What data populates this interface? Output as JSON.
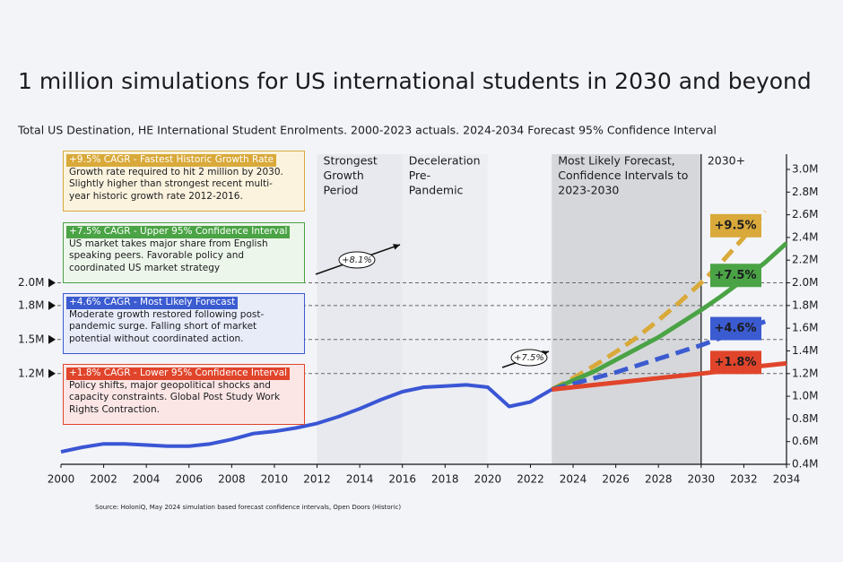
{
  "chart_data": {
    "type": "line",
    "title": "1 million simulations for US international students in 2030 and beyond",
    "subtitle": "Total US Destination, HE International Student Enrolments. 2000-2023 actuals. 2024-2034 Forecast 95% Confidence Interval",
    "source": "Source: HoloniQ, May 2024 simulation based forecast confidence intervals, Open Doors (Historic)",
    "x": [
      2000,
      2001,
      2002,
      2003,
      2004,
      2005,
      2006,
      2007,
      2008,
      2009,
      2010,
      2011,
      2012,
      2013,
      2014,
      2015,
      2016,
      2017,
      2018,
      2019,
      2020,
      2021,
      2022,
      2023,
      2024,
      2025,
      2026,
      2027,
      2028,
      2029,
      2030,
      2031,
      2032,
      2033,
      2034
    ],
    "xlim": [
      2000,
      2034
    ],
    "xticks": [
      2000,
      2002,
      2004,
      2006,
      2008,
      2010,
      2012,
      2014,
      2016,
      2018,
      2020,
      2022,
      2024,
      2026,
      2028,
      2030,
      2032,
      2034
    ],
    "ylim": [
      0.4,
      3.0
    ],
    "yticks": [
      {
        "value": 0.4,
        "label": "0.4M"
      },
      {
        "value": 0.6,
        "label": "0.6M"
      },
      {
        "value": 0.8,
        "label": "0.8M"
      },
      {
        "value": 1.0,
        "label": "1.0M"
      },
      {
        "value": 1.2,
        "label": "1.2M"
      },
      {
        "value": 1.4,
        "label": "1.4M"
      },
      {
        "value": 1.6,
        "label": "1.6M"
      },
      {
        "value": 1.8,
        "label": "1.8M"
      },
      {
        "value": 2.0,
        "label": "2.0M"
      },
      {
        "value": 2.2,
        "label": "2.2M"
      },
      {
        "value": 2.4,
        "label": "2.4M"
      },
      {
        "value": 2.6,
        "label": "2.6M"
      },
      {
        "value": 2.8,
        "label": "2.8M"
      },
      {
        "value": 3.0,
        "label": "3.0M"
      }
    ],
    "reference_lines": [
      {
        "value": 2.0,
        "label": "2.0M"
      },
      {
        "value": 1.8,
        "label": "1.8M"
      },
      {
        "value": 1.5,
        "label": "1.5M"
      },
      {
        "value": 1.2,
        "label": "1.2M"
      }
    ],
    "periods": [
      {
        "start": 2012,
        "end": 2016,
        "fill": "#e8e9ee",
        "label": [
          "Strongest",
          "Growth",
          "Period"
        ]
      },
      {
        "start": 2016,
        "end": 2020,
        "fill": "#eceef2",
        "label": [
          "Deceleration",
          "Pre-",
          "Pandemic"
        ]
      },
      {
        "start": 2023,
        "end": 2030,
        "fill": "#d6d7db",
        "label": [
          "Most Likely Forecast,",
          "Confidence Intervals to",
          "2023-2030"
        ]
      },
      {
        "start": 2030,
        "end": 2034,
        "fill": "none",
        "label": [
          "2030+"
        ]
      }
    ],
    "divider": 2030,
    "series": [
      {
        "color": "#3a56d4",
        "width": 4,
        "dashed": false,
        "values": [
          0.51,
          0.55,
          0.58,
          0.58,
          0.57,
          0.56,
          0.56,
          0.58,
          0.62,
          0.67,
          0.69,
          0.72,
          0.76,
          0.82,
          0.89,
          0.97,
          1.04,
          1.08,
          1.09,
          1.1,
          1.08,
          0.91,
          0.95,
          1.06,
          null,
          null,
          null,
          null,
          null,
          null,
          null,
          null,
          null,
          null,
          null
        ]
      },
      {
        "color": "#d9a93a",
        "width": 5,
        "dashed": true,
        "label": "+9.5%",
        "values": [
          null,
          null,
          null,
          null,
          null,
          null,
          null,
          null,
          null,
          null,
          null,
          null,
          null,
          null,
          null,
          null,
          null,
          null,
          null,
          null,
          null,
          null,
          null,
          1.06,
          1.16,
          1.27,
          1.39,
          1.52,
          1.67,
          1.83,
          2.0,
          2.19,
          2.4,
          2.63,
          null
        ]
      },
      {
        "color": "#4aa345",
        "width": 5,
        "dashed": false,
        "label": "+7.5%",
        "values": [
          null,
          null,
          null,
          null,
          null,
          null,
          null,
          null,
          null,
          null,
          null,
          null,
          null,
          null,
          null,
          null,
          null,
          null,
          null,
          null,
          null,
          null,
          null,
          1.06,
          1.14,
          1.22,
          1.32,
          1.42,
          1.52,
          1.64,
          1.76,
          1.89,
          2.03,
          2.18,
          2.35
        ]
      },
      {
        "color": "#3b5bd0",
        "width": 5,
        "dashed": true,
        "label": "+4.6%",
        "values": [
          null,
          null,
          null,
          null,
          null,
          null,
          null,
          null,
          null,
          null,
          null,
          null,
          null,
          null,
          null,
          null,
          null,
          null,
          null,
          null,
          null,
          null,
          null,
          1.06,
          1.11,
          1.16,
          1.21,
          1.27,
          1.33,
          1.39,
          1.45,
          1.52,
          1.59,
          1.66,
          null
        ]
      },
      {
        "color": "#e0452b",
        "width": 5,
        "dashed": false,
        "label": "+1.8%",
        "values": [
          null,
          null,
          null,
          null,
          null,
          null,
          null,
          null,
          null,
          null,
          null,
          null,
          null,
          null,
          null,
          null,
          null,
          null,
          null,
          null,
          null,
          null,
          null,
          1.06,
          1.08,
          1.1,
          1.12,
          1.14,
          1.16,
          1.18,
          1.2,
          1.22,
          1.25,
          1.27,
          1.29
        ]
      }
    ],
    "growth_arrows": [
      {
        "label": "+8.1%"
      },
      {
        "label": "+7.5%"
      }
    ],
    "boxes": [
      {
        "color": "#d9a93a",
        "bg": "#fbf3dd",
        "header": "+9.5% CAGR - Fastest Historic Growth Rate",
        "lines": [
          "Growth rate required to hit 2 million by 2030.",
          "Slightly higher than strongest recent multi-",
          "year historic growth rate 2012-2016."
        ]
      },
      {
        "color": "#4aa345",
        "bg": "#edf6ea",
        "header": "+7.5% CAGR - Upper 95% Confidence Interval",
        "lines": [
          "US market takes major share from English",
          "speaking peers. Favorable policy and",
          "coordinated US market strategy"
        ]
      },
      {
        "color": "#3b5bd0",
        "bg": "#e8ecf9",
        "header": "+4.6% CAGR - Most Likely Forecast",
        "lines": [
          "Moderate growth restored following post-",
          "pandemic surge. Falling short of market",
          "potential without coordinated action."
        ]
      },
      {
        "color": "#e0452b",
        "bg": "#fbe6e5",
        "header": "+1.8% CAGR - Lower 95% Confidence Interval",
        "lines": [
          "Policy shifts, major geopolitical shocks and",
          "capacity constraints. Global Post Study Work",
          "Rights Contraction."
        ]
      }
    ]
  }
}
